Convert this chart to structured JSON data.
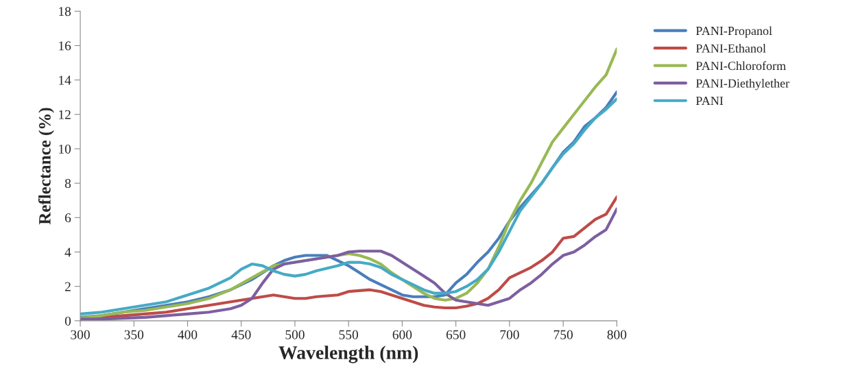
{
  "chart_data": {
    "type": "line",
    "xlabel": "Wavelength (nm)",
    "ylabel": "Reflectance (%)",
    "xlim": [
      300,
      800
    ],
    "ylim": [
      0,
      18
    ],
    "xticks": [
      300,
      350,
      400,
      450,
      500,
      550,
      600,
      650,
      700,
      750,
      800
    ],
    "yticks": [
      0,
      2,
      4,
      6,
      8,
      10,
      12,
      14,
      16,
      18
    ],
    "grid": false,
    "legend": "right",
    "marker": "none",
    "line_style": "solid",
    "series": [
      {
        "name": "PANI-Propanol",
        "color": "#4a7ebb",
        "x": [
          300,
          320,
          340,
          360,
          380,
          400,
          420,
          440,
          460,
          480,
          490,
          500,
          510,
          520,
          530,
          540,
          550,
          560,
          570,
          580,
          590,
          600,
          610,
          620,
          630,
          640,
          650,
          660,
          670,
          680,
          690,
          700,
          710,
          720,
          730,
          740,
          750,
          760,
          770,
          780,
          790,
          800
        ],
        "values": [
          0.2,
          0.3,
          0.5,
          0.7,
          0.9,
          1.1,
          1.4,
          1.8,
          2.4,
          3.2,
          3.5,
          3.7,
          3.8,
          3.8,
          3.8,
          3.5,
          3.2,
          2.8,
          2.4,
          2.1,
          1.8,
          1.5,
          1.4,
          1.4,
          1.4,
          1.5,
          2.2,
          2.7,
          3.4,
          4.0,
          4.8,
          5.8,
          6.6,
          7.3,
          8.0,
          8.9,
          9.8,
          10.4,
          11.3,
          11.8,
          12.4,
          13.3
        ]
      },
      {
        "name": "PANI-Ethanol",
        "color": "#be4b48",
        "x": [
          300,
          320,
          340,
          360,
          380,
          400,
          420,
          440,
          460,
          480,
          490,
          500,
          510,
          520,
          540,
          550,
          560,
          570,
          580,
          590,
          600,
          610,
          620,
          630,
          640,
          650,
          660,
          670,
          680,
          690,
          700,
          710,
          720,
          730,
          740,
          750,
          760,
          770,
          780,
          790,
          800
        ],
        "values": [
          0.1,
          0.2,
          0.3,
          0.4,
          0.5,
          0.7,
          0.9,
          1.1,
          1.3,
          1.5,
          1.4,
          1.3,
          1.3,
          1.4,
          1.5,
          1.7,
          1.75,
          1.8,
          1.7,
          1.5,
          1.3,
          1.1,
          0.9,
          0.8,
          0.75,
          0.75,
          0.85,
          1.0,
          1.3,
          1.8,
          2.5,
          2.8,
          3.1,
          3.5,
          4.0,
          4.8,
          4.9,
          5.4,
          5.9,
          6.2,
          7.2
        ]
      },
      {
        "name": "PANI-Chloroform",
        "color": "#98b954",
        "x": [
          300,
          320,
          340,
          360,
          380,
          400,
          420,
          440,
          460,
          480,
          500,
          520,
          540,
          550,
          560,
          570,
          580,
          590,
          600,
          610,
          620,
          630,
          640,
          650,
          660,
          670,
          680,
          690,
          700,
          710,
          720,
          730,
          740,
          750,
          760,
          770,
          780,
          790,
          800
        ],
        "values": [
          0.15,
          0.3,
          0.5,
          0.6,
          0.8,
          1.0,
          1.3,
          1.8,
          2.5,
          3.2,
          3.4,
          3.6,
          3.8,
          3.9,
          3.8,
          3.6,
          3.3,
          2.8,
          2.4,
          2.0,
          1.6,
          1.3,
          1.2,
          1.3,
          1.6,
          2.2,
          3.0,
          4.3,
          5.8,
          7.0,
          8.0,
          9.2,
          10.4,
          11.2,
          12.0,
          12.8,
          13.6,
          14.3,
          15.8
        ]
      },
      {
        "name": "PANI-Diethylether",
        "color": "#7d5fa0",
        "x": [
          300,
          320,
          340,
          360,
          380,
          400,
          420,
          440,
          450,
          460,
          470,
          480,
          490,
          500,
          520,
          540,
          550,
          560,
          570,
          580,
          590,
          600,
          610,
          620,
          630,
          640,
          650,
          660,
          670,
          680,
          690,
          700,
          710,
          720,
          730,
          740,
          750,
          760,
          770,
          780,
          790,
          800
        ],
        "values": [
          0.1,
          0.1,
          0.15,
          0.2,
          0.3,
          0.4,
          0.5,
          0.7,
          0.9,
          1.3,
          2.2,
          3.0,
          3.3,
          3.4,
          3.6,
          3.8,
          4.0,
          4.05,
          4.05,
          4.05,
          3.8,
          3.4,
          3.0,
          2.6,
          2.2,
          1.6,
          1.2,
          1.1,
          1.0,
          0.9,
          1.1,
          1.3,
          1.8,
          2.2,
          2.7,
          3.3,
          3.8,
          4.0,
          4.4,
          4.9,
          5.3,
          6.5
        ]
      },
      {
        "name": "PANI",
        "color": "#46aac5",
        "x": [
          300,
          320,
          340,
          360,
          380,
          400,
          420,
          440,
          450,
          460,
          470,
          480,
          490,
          500,
          510,
          520,
          540,
          550,
          560,
          570,
          580,
          590,
          600,
          610,
          620,
          630,
          640,
          650,
          660,
          670,
          680,
          690,
          700,
          710,
          720,
          730,
          740,
          750,
          760,
          770,
          780,
          790,
          800
        ],
        "values": [
          0.4,
          0.5,
          0.7,
          0.9,
          1.1,
          1.5,
          1.9,
          2.5,
          3.0,
          3.3,
          3.2,
          2.9,
          2.7,
          2.6,
          2.7,
          2.9,
          3.2,
          3.4,
          3.4,
          3.3,
          3.1,
          2.7,
          2.4,
          2.1,
          1.8,
          1.6,
          1.6,
          1.7,
          2.0,
          2.4,
          3.0,
          4.0,
          5.2,
          6.4,
          7.2,
          8.0,
          8.9,
          9.7,
          10.3,
          11.1,
          11.8,
          12.3,
          12.9
        ]
      }
    ]
  }
}
